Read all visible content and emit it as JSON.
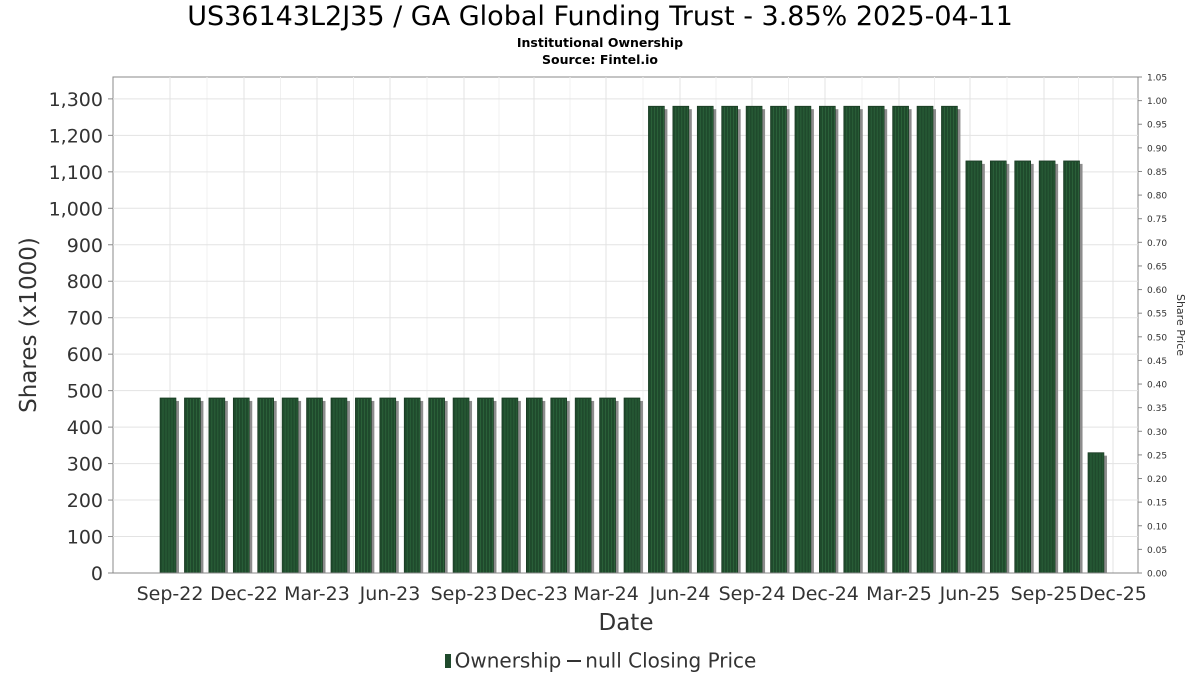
{
  "chart_data": {
    "type": "bar",
    "title": "US36143L2J35 / GA Global Funding Trust - 3.85% 2025-04-11",
    "subtitle": "Institutional Ownership",
    "source": "Source: Fintel.io",
    "xlabel": "Date",
    "ylabel": "Shares (x1000)",
    "y2label": "Share Price",
    "x_ticks": [
      "Sep-22",
      "Dec-22",
      "Mar-23",
      "Jun-23",
      "Sep-23",
      "Dec-23",
      "Mar-24",
      "Jun-24",
      "Sep-24",
      "Dec-24",
      "Mar-25",
      "Jun-25",
      "Sep-25",
      "Dec-25"
    ],
    "y_ticks": [
      "0",
      "100",
      "200",
      "300",
      "400",
      "500",
      "600",
      "700",
      "800",
      "900",
      "1,000",
      "1,100",
      "1,200",
      "1,300"
    ],
    "y2_ticks": [
      "0.00",
      "0.05",
      "0.10",
      "0.15",
      "0.20",
      "0.25",
      "0.30",
      "0.35",
      "0.40",
      "0.45",
      "0.50",
      "0.55",
      "0.60",
      "0.65",
      "0.70",
      "0.75",
      "0.80",
      "0.85",
      "0.90",
      "0.95",
      "1.00",
      "1.05"
    ],
    "ylim": [
      0,
      1360
    ],
    "y2lim": [
      0,
      1.05
    ],
    "grid": true,
    "legend_position": "bottom",
    "bar_color": "#1f4a2c",
    "series": [
      {
        "name": "Ownership",
        "values": [
          480,
          480,
          480,
          480,
          480,
          480,
          480,
          480,
          480,
          480,
          480,
          480,
          480,
          480,
          480,
          480,
          480,
          480,
          480,
          480,
          1280,
          1280,
          1280,
          1280,
          1280,
          1280,
          1280,
          1280,
          1280,
          1280,
          1280,
          1280,
          1280,
          1130,
          1130,
          1130,
          1130,
          1130,
          330
        ]
      }
    ],
    "legend": [
      "Ownership",
      "null Closing Price"
    ]
  }
}
